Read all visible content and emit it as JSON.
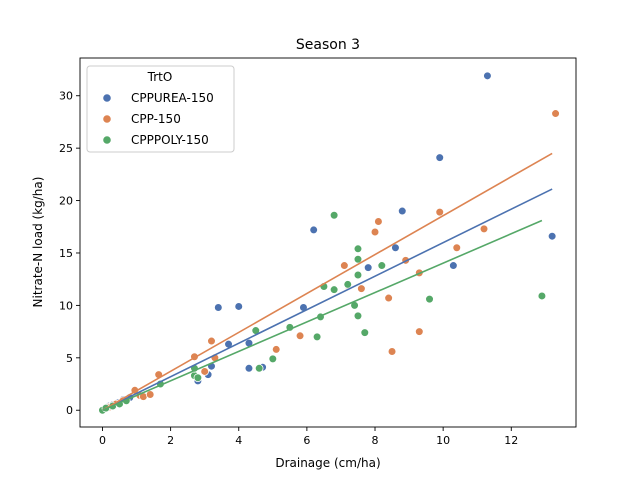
{
  "chart_data": {
    "type": "scatter",
    "title": "Season 3",
    "xlabel": "Drainage (cm/ha)",
    "ylabel": "Nitrate-N load (kg/ha)",
    "xlim": [
      -0.66,
      13.9
    ],
    "ylim": [
      -1.6,
      33.6
    ],
    "xticks": [
      0,
      2,
      4,
      6,
      8,
      10,
      12
    ],
    "yticks": [
      0,
      5,
      10,
      15,
      20,
      25,
      30
    ],
    "grid": false,
    "legend": {
      "title": "TrtO",
      "placement": "upper-left"
    },
    "series": [
      {
        "name": "CPPUREA-150",
        "color": "#4c72b0",
        "fit": {
          "x": [
            0,
            13.2
          ],
          "y": [
            0,
            21.1
          ]
        },
        "points": [
          [
            0.02,
            0.05
          ],
          [
            0.1,
            0.2
          ],
          [
            0.2,
            0.4
          ],
          [
            0.3,
            0.5
          ],
          [
            0.45,
            0.7
          ],
          [
            0.6,
            1.0
          ],
          [
            0.8,
            1.2
          ],
          [
            2.8,
            2.8
          ],
          [
            3.1,
            3.4
          ],
          [
            3.2,
            4.2
          ],
          [
            3.4,
            9.8
          ],
          [
            3.7,
            6.3
          ],
          [
            4.0,
            9.9
          ],
          [
            4.3,
            4.0
          ],
          [
            4.3,
            6.4
          ],
          [
            4.7,
            4.1
          ],
          [
            5.9,
            9.8
          ],
          [
            6.2,
            17.2
          ],
          [
            7.8,
            13.6
          ],
          [
            8.6,
            15.5
          ],
          [
            8.8,
            19.0
          ],
          [
            9.9,
            24.1
          ],
          [
            10.3,
            13.8
          ],
          [
            11.3,
            31.9
          ],
          [
            13.2,
            16.6
          ]
        ]
      },
      {
        "name": "CPP-150",
        "color": "#dd8452",
        "fit": {
          "x": [
            0,
            13.2
          ],
          "y": [
            0,
            24.5
          ]
        },
        "points": [
          [
            0.05,
            0.1
          ],
          [
            0.2,
            0.3
          ],
          [
            0.4,
            0.6
          ],
          [
            0.6,
            0.9
          ],
          [
            0.95,
            1.9
          ],
          [
            1.1,
            1.4
          ],
          [
            1.2,
            1.3
          ],
          [
            1.4,
            1.5
          ],
          [
            1.65,
            3.4
          ],
          [
            2.7,
            5.1
          ],
          [
            3.0,
            3.7
          ],
          [
            3.2,
            6.6
          ],
          [
            3.3,
            5.0
          ],
          [
            5.1,
            5.8
          ],
          [
            5.8,
            7.1
          ],
          [
            7.1,
            13.8
          ],
          [
            7.2,
            11.9
          ],
          [
            7.6,
            11.6
          ],
          [
            8.0,
            17.0
          ],
          [
            8.1,
            18.0
          ],
          [
            8.4,
            10.7
          ],
          [
            8.5,
            5.6
          ],
          [
            8.9,
            14.3
          ],
          [
            9.3,
            7.5
          ],
          [
            9.3,
            13.1
          ],
          [
            9.9,
            18.9
          ],
          [
            10.4,
            15.5
          ],
          [
            11.2,
            17.3
          ],
          [
            13.3,
            28.3
          ]
        ]
      },
      {
        "name": "CPPPOLY-150",
        "color": "#55a868",
        "fit": {
          "x": [
            0,
            12.9
          ],
          "y": [
            0,
            18.1
          ]
        },
        "points": [
          [
            0.0,
            0.0
          ],
          [
            0.1,
            0.2
          ],
          [
            0.3,
            0.4
          ],
          [
            0.5,
            0.6
          ],
          [
            0.7,
            0.9
          ],
          [
            1.7,
            2.5
          ],
          [
            2.7,
            3.3
          ],
          [
            2.7,
            4.0
          ],
          [
            2.8,
            3.1
          ],
          [
            4.5,
            7.6
          ],
          [
            4.6,
            4.0
          ],
          [
            5.0,
            4.9
          ],
          [
            5.5,
            7.9
          ],
          [
            6.3,
            7.0
          ],
          [
            6.4,
            8.9
          ],
          [
            6.5,
            11.8
          ],
          [
            6.8,
            11.5
          ],
          [
            6.8,
            18.6
          ],
          [
            7.2,
            12.0
          ],
          [
            7.4,
            10.0
          ],
          [
            7.5,
            9.0
          ],
          [
            7.5,
            15.4
          ],
          [
            7.5,
            14.4
          ],
          [
            7.5,
            12.9
          ],
          [
            7.7,
            7.4
          ],
          [
            8.2,
            13.8
          ],
          [
            9.6,
            10.6
          ],
          [
            12.9,
            10.9
          ]
        ]
      }
    ]
  }
}
